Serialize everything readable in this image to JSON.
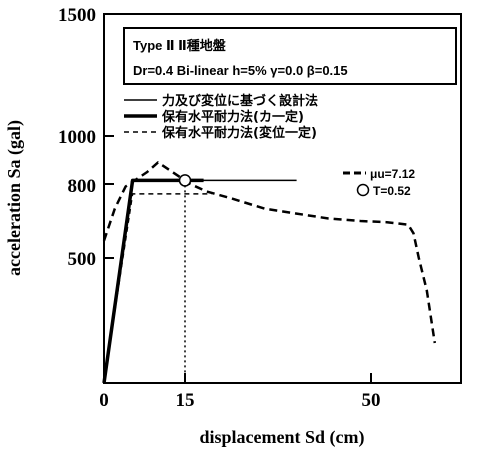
{
  "chart_data": {
    "type": "line",
    "xlabel": "displacement Sd (cm)",
    "ylabel": "acceleration Sa (gal)",
    "xlim": [
      0,
      62
    ],
    "ylim": [
      0,
      1500
    ],
    "x_ticks": [
      0,
      15,
      50
    ],
    "y_ticks": [
      500,
      800,
      1000,
      1500
    ],
    "info_box": {
      "line1": "Type Ⅱ Ⅱ種地盤",
      "line2": "Dr=0.4 Bi-linear h=5% γ=0.0 β=0.15"
    },
    "legend": [
      "力及び変位に基づく設計法",
      "保有水平耐力法(カ一定)",
      "保有水平耐力法(変位一定)"
    ],
    "annotations": {
      "mu": "μu=7.12",
      "period": "T=0.52"
    },
    "series": [
      {
        "name": "力及び変位に基づく設計法",
        "style": "thin-solid",
        "points": [
          [
            0,
            0
          ],
          [
            5.3,
            815
          ],
          [
            36,
            815
          ]
        ]
      },
      {
        "name": "保有水平耐力法(カ一定)",
        "style": "thick-solid",
        "points": [
          [
            0,
            0
          ],
          [
            5.3,
            815
          ],
          [
            18.5,
            815
          ]
        ]
      },
      {
        "name": "保有水平耐力法(変位一定)",
        "style": "dashed-thin",
        "points": [
          [
            0,
            0
          ],
          [
            5.3,
            760
          ],
          [
            20,
            760
          ]
        ]
      },
      {
        "name": "μu=7.12",
        "style": "dashed-thick",
        "points": [
          [
            0,
            570
          ],
          [
            2,
            700
          ],
          [
            4,
            790
          ],
          [
            8,
            850
          ],
          [
            10,
            890
          ],
          [
            12,
            860
          ],
          [
            14,
            830
          ],
          [
            15,
            815
          ],
          [
            16,
            800
          ],
          [
            19,
            770
          ],
          [
            24,
            740
          ],
          [
            30,
            700
          ],
          [
            36,
            680
          ],
          [
            42,
            660
          ],
          [
            48,
            650
          ],
          [
            53,
            645
          ],
          [
            57,
            635
          ],
          [
            58,
            600
          ],
          [
            59,
            500
          ],
          [
            60.5,
            370
          ],
          [
            62,
            160
          ]
        ]
      }
    ],
    "marker_point": [
      15,
      815
    ],
    "vertical_drop_x": 15
  }
}
